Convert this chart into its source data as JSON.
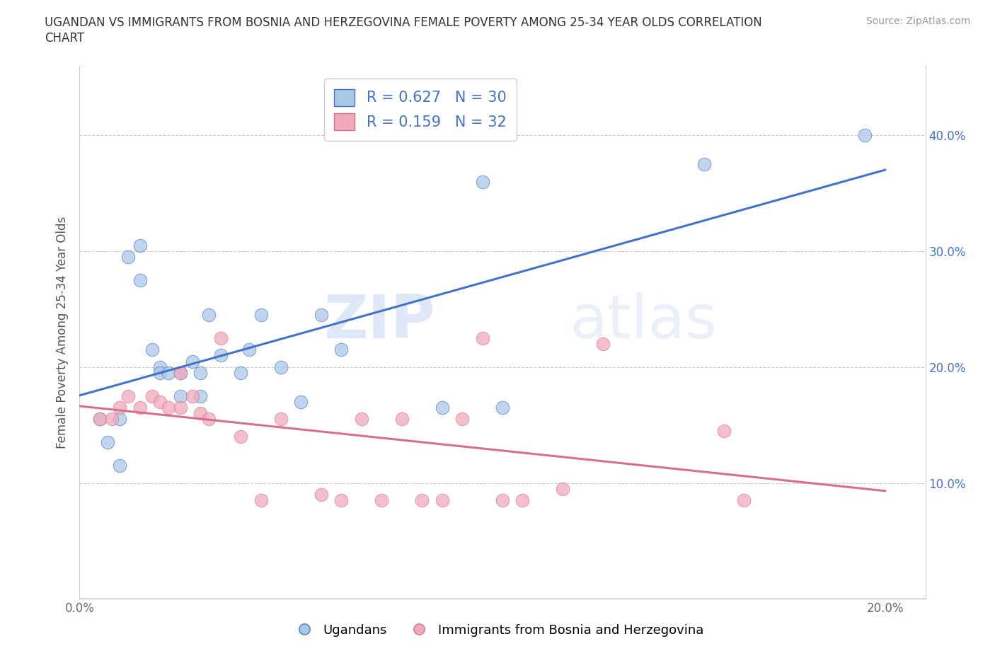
{
  "title_line1": "UGANDAN VS IMMIGRANTS FROM BOSNIA AND HERZEGOVINA FEMALE POVERTY AMONG 25-34 YEAR OLDS CORRELATION",
  "title_line2": "CHART",
  "source_text": "Source: ZipAtlas.com",
  "ylabel": "Female Poverty Among 25-34 Year Olds",
  "xlim": [
    0.0,
    0.21
  ],
  "ylim": [
    0.0,
    0.46
  ],
  "yticks": [
    0.1,
    0.2,
    0.3,
    0.4
  ],
  "ytick_labels": [
    "10.0%",
    "20.0%",
    "30.0%",
    "40.0%"
  ],
  "xticks": [
    0.0,
    0.2
  ],
  "xtick_labels": [
    "0.0%",
    "20.0%"
  ],
  "blue_R": 0.627,
  "blue_N": 30,
  "pink_R": 0.159,
  "pink_N": 32,
  "blue_color": "#a8c8e8",
  "pink_color": "#f0aabb",
  "blue_line_color": "#4472c4",
  "pink_line_color": "#d4708a",
  "watermark_zip": "ZIP",
  "watermark_atlas": "atlas",
  "blue_scatter_x": [
    0.005,
    0.007,
    0.01,
    0.01,
    0.012,
    0.015,
    0.015,
    0.018,
    0.02,
    0.02,
    0.022,
    0.025,
    0.025,
    0.028,
    0.03,
    0.03,
    0.032,
    0.035,
    0.04,
    0.042,
    0.045,
    0.05,
    0.055,
    0.06,
    0.065,
    0.09,
    0.1,
    0.105,
    0.155,
    0.195
  ],
  "blue_scatter_y": [
    0.155,
    0.135,
    0.155,
    0.115,
    0.295,
    0.305,
    0.275,
    0.215,
    0.2,
    0.195,
    0.195,
    0.195,
    0.175,
    0.205,
    0.195,
    0.175,
    0.245,
    0.21,
    0.195,
    0.215,
    0.245,
    0.2,
    0.17,
    0.245,
    0.215,
    0.165,
    0.36,
    0.165,
    0.375,
    0.4
  ],
  "pink_scatter_x": [
    0.005,
    0.008,
    0.01,
    0.012,
    0.015,
    0.018,
    0.02,
    0.022,
    0.025,
    0.025,
    0.028,
    0.03,
    0.032,
    0.035,
    0.04,
    0.045,
    0.05,
    0.06,
    0.065,
    0.07,
    0.075,
    0.08,
    0.085,
    0.09,
    0.095,
    0.1,
    0.105,
    0.11,
    0.12,
    0.13,
    0.16,
    0.165
  ],
  "pink_scatter_y": [
    0.155,
    0.155,
    0.165,
    0.175,
    0.165,
    0.175,
    0.17,
    0.165,
    0.165,
    0.195,
    0.175,
    0.16,
    0.155,
    0.225,
    0.14,
    0.085,
    0.155,
    0.09,
    0.085,
    0.155,
    0.085,
    0.155,
    0.085,
    0.085,
    0.155,
    0.225,
    0.085,
    0.085,
    0.095,
    0.22,
    0.145,
    0.085
  ]
}
